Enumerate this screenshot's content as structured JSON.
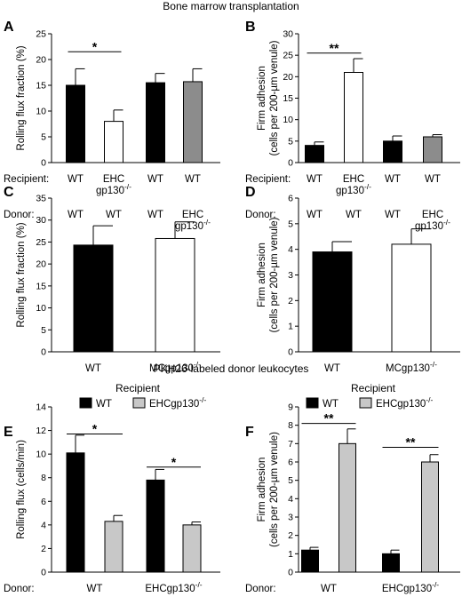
{
  "sections": {
    "top_title": "Bone marrow transplantation",
    "middle_title": "PKH26-labeled donor leukocytes"
  },
  "colors": {
    "black": "#000000",
    "white": "#ffffff",
    "dark_gray": "#8c8c8c",
    "light_gray": "#c8c8c8"
  },
  "chart_data": [
    {
      "panel": "A",
      "type": "bar",
      "ylabel": "Rolling flux fraction (%)",
      "ylim": [
        0,
        25
      ],
      "yticks": [
        0,
        5,
        10,
        15,
        20,
        25
      ],
      "row_labels": [
        "Recipient:",
        "Donor:"
      ],
      "recipient": [
        "WT",
        "EHC\ngp130-/-",
        "WT",
        "WT"
      ],
      "donor": [
        "WT",
        "WT",
        "WT",
        "EHC\ngp130-/-"
      ],
      "values": [
        15.0,
        8.0,
        15.5,
        15.7
      ],
      "errors": [
        3.2,
        2.2,
        1.8,
        2.5
      ],
      "fills": [
        "black",
        "white",
        "black",
        "dark_gray"
      ],
      "significance": [
        {
          "from": 0,
          "to": 1,
          "label": "*",
          "y": 21.5
        }
      ]
    },
    {
      "panel": "B",
      "type": "bar",
      "ylabel": "Firm adhesion\n(cells per 200-µm venule)",
      "ylim": [
        0,
        30
      ],
      "yticks": [
        0,
        5,
        10,
        15,
        20,
        25,
        30
      ],
      "row_labels": [
        "Recipient:",
        "Donor:"
      ],
      "recipient": [
        "WT",
        "EHC\ngp130-/-",
        "WT",
        "WT"
      ],
      "donor": [
        "WT",
        "WT",
        "WT",
        "EHC\ngp130-/-"
      ],
      "values": [
        4.0,
        21.0,
        5.0,
        6.0
      ],
      "errors": [
        0.8,
        3.2,
        1.2,
        0.5
      ],
      "fills": [
        "black",
        "white",
        "black",
        "dark_gray"
      ],
      "significance": [
        {
          "from": 0,
          "to": 1,
          "label": "**",
          "y": 25.5
        }
      ]
    },
    {
      "panel": "C",
      "type": "bar",
      "ylabel": "Rolling flux fraction (%)",
      "ylim": [
        0,
        35
      ],
      "yticks": [
        0,
        5,
        10,
        15,
        20,
        25,
        30,
        35
      ],
      "categories": [
        "WT",
        "MCgp130-/-"
      ],
      "values": [
        24.3,
        25.8
      ],
      "errors": [
        4.4,
        3.8
      ],
      "fills": [
        "black",
        "white"
      ]
    },
    {
      "panel": "D",
      "type": "bar",
      "ylabel": "Firm adhesion\n(cells per 200-µm venule)",
      "ylim": [
        0,
        6
      ],
      "yticks": [
        0,
        1,
        2,
        3,
        4,
        5,
        6
      ],
      "categories": [
        "WT",
        "MCgp130-/-"
      ],
      "values": [
        3.9,
        4.2
      ],
      "errors": [
        0.4,
        0.6
      ],
      "fills": [
        "black",
        "white"
      ]
    },
    {
      "panel": "E",
      "type": "bar",
      "ylabel": "Rolling flux (cells/min)",
      "ylim": [
        0,
        14
      ],
      "yticks": [
        0,
        2,
        4,
        6,
        8,
        10,
        12,
        14
      ],
      "row_label": "Donor:",
      "categories": [
        "WT",
        "EHCgp130-/-"
      ],
      "legend_title": "Recipient",
      "legend_position": "top",
      "series": [
        {
          "name": "WT",
          "fill": "black",
          "values": [
            10.1,
            7.8
          ],
          "errors": [
            1.5,
            0.9
          ]
        },
        {
          "name": "EHCgp130-/-",
          "fill": "light_gray",
          "values": [
            4.3,
            4.0
          ],
          "errors": [
            0.5,
            0.25
          ]
        }
      ],
      "significance": [
        {
          "group": 0,
          "label": "*",
          "y": 11.7
        },
        {
          "group": 1,
          "label": "*",
          "y": 8.9
        }
      ]
    },
    {
      "panel": "F",
      "type": "bar",
      "ylabel": "Firm adhesion\n(cells per 200-µm venule)",
      "ylim": [
        0,
        9
      ],
      "yticks": [
        0,
        1,
        2,
        3,
        4,
        5,
        6,
        7,
        8,
        9
      ],
      "row_label": "Donor:",
      "categories": [
        "WT",
        "EHCgp130-/-"
      ],
      "legend_title": "Recipient",
      "legend_position": "top",
      "series": [
        {
          "name": "WT",
          "fill": "black",
          "values": [
            1.2,
            1.0
          ],
          "errors": [
            0.15,
            0.2
          ]
        },
        {
          "name": "EHCgp130-/-",
          "fill": "light_gray",
          "values": [
            7.0,
            6.0
          ],
          "errors": [
            0.8,
            0.4
          ]
        }
      ],
      "significance": [
        {
          "group": 0,
          "label": "**",
          "y": 8.1
        },
        {
          "group": 1,
          "label": "**",
          "y": 6.8
        }
      ]
    }
  ]
}
